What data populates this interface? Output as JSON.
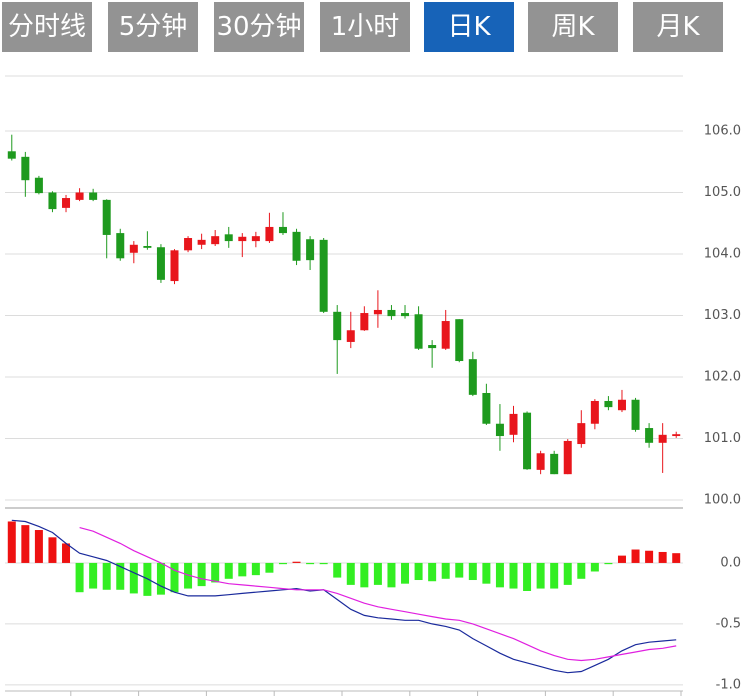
{
  "tabs": [
    "分时线",
    "5分钟",
    "30分钟",
    "1小时",
    "日K",
    "周K",
    "月K"
  ],
  "active_tab": 4,
  "chart_data": [
    {
      "type": "candlestick",
      "up_color": "#e8161c",
      "down_color": "#1e9a1e",
      "open": [
        105.67,
        105.58,
        105.24,
        105.0,
        104.75,
        104.88,
        105.0,
        104.88,
        104.34,
        104.02,
        104.13,
        104.11,
        103.56,
        104.06,
        104.15,
        104.16,
        104.32,
        104.21,
        104.21,
        104.21,
        104.44,
        104.36,
        104.24,
        104.23,
        103.06,
        102.57,
        102.76,
        103.02,
        103.09,
        103.04,
        103.02,
        102.52,
        102.46,
        102.94,
        102.29,
        101.74,
        101.24,
        101.06,
        101.42,
        100.49,
        100.75,
        100.42,
        100.91,
        101.24,
        101.61,
        101.46,
        101.63,
        101.17,
        100.93,
        101.04
      ],
      "high": [
        105.94,
        105.66,
        105.27,
        105.02,
        104.96,
        105.07,
        105.06,
        104.89,
        104.41,
        104.21,
        104.37,
        104.16,
        104.08,
        104.29,
        104.33,
        104.39,
        104.44,
        104.34,
        104.36,
        104.67,
        104.68,
        104.41,
        104.29,
        104.26,
        103.17,
        103.06,
        103.15,
        103.41,
        103.17,
        103.17,
        103.15,
        102.6,
        103.09,
        102.94,
        102.41,
        101.89,
        101.56,
        101.53,
        101.44,
        100.8,
        100.8,
        100.99,
        101.46,
        101.64,
        101.69,
        101.79,
        101.66,
        101.25,
        101.25,
        101.11
      ],
      "low": [
        105.52,
        104.93,
        104.97,
        104.68,
        104.68,
        104.86,
        104.86,
        103.93,
        103.89,
        103.85,
        104.07,
        103.53,
        103.51,
        104.03,
        104.08,
        104.13,
        104.1,
        103.95,
        104.11,
        104.18,
        104.31,
        103.82,
        103.74,
        103.04,
        102.05,
        102.47,
        102.75,
        102.8,
        102.93,
        102.95,
        102.44,
        102.15,
        102.44,
        102.24,
        101.69,
        101.22,
        100.8,
        100.94,
        100.49,
        100.42,
        100.42,
        100.42,
        100.85,
        101.15,
        101.46,
        101.43,
        101.11,
        100.85,
        100.44,
        101.01
      ],
      "close": [
        105.55,
        105.2,
        104.99,
        104.73,
        104.91,
        105.0,
        104.88,
        104.31,
        103.93,
        104.15,
        104.1,
        103.58,
        104.06,
        104.26,
        104.23,
        104.29,
        104.21,
        104.28,
        104.29,
        104.44,
        104.34,
        103.89,
        103.9,
        103.06,
        102.6,
        102.76,
        103.04,
        103.09,
        102.99,
        102.99,
        102.46,
        102.47,
        102.91,
        102.26,
        101.71,
        101.24,
        101.04,
        101.4,
        100.5,
        100.76,
        100.42,
        100.96,
        101.25,
        101.61,
        101.51,
        101.63,
        101.14,
        100.93,
        101.06,
        101.07
      ],
      "ylim": [
        99.9,
        106.9
      ],
      "yticks": [
        {
          "value": 100,
          "label": "100.0"
        },
        {
          "value": 101,
          "label": "101.0"
        },
        {
          "value": 102,
          "label": "102.0"
        },
        {
          "value": 103,
          "label": "103.0"
        },
        {
          "value": 104,
          "label": "104.0"
        },
        {
          "value": 105,
          "label": "105.0"
        },
        {
          "value": 106,
          "label": "106.0"
        }
      ],
      "grid": true
    },
    {
      "type": "macd",
      "up_color": "#ee1111",
      "down_color": "#33ee22",
      "values": [
        0.34,
        0.31,
        0.27,
        0.21,
        0.16,
        -0.24,
        -0.21,
        -0.22,
        -0.22,
        -0.25,
        -0.27,
        -0.26,
        -0.24,
        -0.21,
        -0.19,
        -0.16,
        -0.13,
        -0.11,
        -0.1,
        -0.08,
        -0.01,
        0.01,
        -0.01,
        -0.01,
        -0.12,
        -0.18,
        -0.2,
        -0.18,
        -0.2,
        -0.17,
        -0.14,
        -0.15,
        -0.13,
        -0.12,
        -0.14,
        -0.17,
        -0.2,
        -0.21,
        -0.23,
        -0.21,
        -0.21,
        -0.18,
        -0.13,
        -0.07,
        -0.01,
        0.06,
        0.11,
        0.1,
        0.09,
        0.08
      ],
      "lines": [
        {
          "color": "#1a2a9c",
          "values": [
            0.35,
            0.34,
            0.3,
            0.25,
            0.16,
            0.08,
            0.05,
            0.02,
            -0.03,
            -0.08,
            -0.13,
            -0.19,
            -0.24,
            -0.27,
            -0.27,
            -0.27,
            -0.26,
            -0.25,
            -0.24,
            -0.23,
            -0.22,
            -0.21,
            -0.23,
            -0.22,
            -0.3,
            -0.38,
            -0.43,
            -0.45,
            -0.46,
            -0.47,
            -0.47,
            -0.5,
            -0.52,
            -0.55,
            -0.62,
            -0.68,
            -0.74,
            -0.79,
            -0.82,
            -0.85,
            -0.88,
            -0.9,
            -0.89,
            -0.84,
            -0.79,
            -0.72,
            -0.67,
            -0.65,
            -0.64,
            -0.63
          ]
        },
        {
          "color": "#e020e0",
          "values": [
            null,
            null,
            null,
            null,
            null,
            0.29,
            0.26,
            0.21,
            0.16,
            0.1,
            0.05,
            0.0,
            -0.06,
            -0.1,
            -0.13,
            -0.15,
            -0.17,
            -0.18,
            -0.19,
            -0.2,
            -0.21,
            -0.22,
            -0.22,
            -0.22,
            -0.25,
            -0.29,
            -0.33,
            -0.36,
            -0.38,
            -0.4,
            -0.42,
            -0.44,
            -0.46,
            -0.47,
            -0.5,
            -0.54,
            -0.58,
            -0.62,
            -0.67,
            -0.72,
            -0.76,
            -0.79,
            -0.8,
            -0.79,
            -0.77,
            -0.75,
            -0.73,
            -0.71,
            -0.7,
            -0.68
          ]
        }
      ],
      "ylim": [
        -1.05,
        0.43
      ],
      "yticks": [
        {
          "value": 0,
          "label": "0.0"
        },
        {
          "value": -0.5,
          "label": "-0.5"
        },
        {
          "value": -1,
          "label": "-1.0"
        }
      ],
      "grid": true
    }
  ]
}
